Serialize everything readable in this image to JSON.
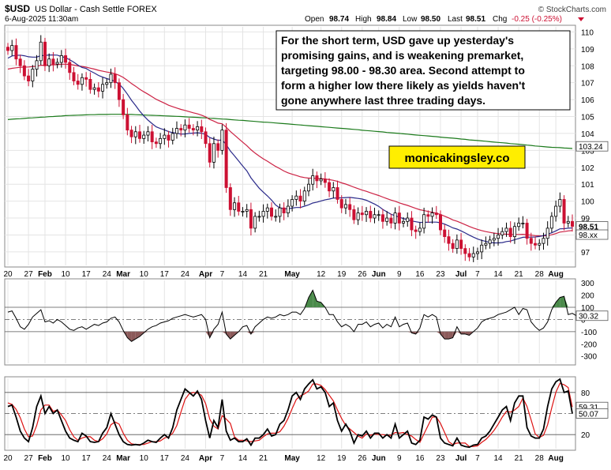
{
  "header": {
    "symbol": "$USD",
    "name": "US Dollar - Cash Settle FOREX",
    "date": "6-Aug-2025 11:30am",
    "brand": "© StockCharts.com",
    "ohlc": [
      {
        "label": "Open",
        "value": "98.74"
      },
      {
        "label": "High",
        "value": "98.84"
      },
      {
        "label": "Low",
        "value": "98.50"
      },
      {
        "label": "Last",
        "value": "98.51"
      },
      {
        "label": "Chg",
        "value": "-0.25 (-0.25%)"
      }
    ]
  },
  "annotation": {
    "lines": [
      "For the short term, USD gave up yesterday's",
      "promising gains, and is weakening premarket,",
      "targeting 98.00 - 98.30 area. Second attempt to",
      "form a higher low there likely as yields haven't",
      "gone anywhere last three trading days."
    ],
    "watermark": "monicakingsley.co"
  },
  "colors": {
    "up_candle": "#000000",
    "down_candle": "#cc1133",
    "ma_short": "#2a2a8a",
    "ma_mid": "#cc2244",
    "ma_long": "#1b7a1b",
    "cci_fill": "#8b5a5a",
    "stoch_k": "#000000",
    "stoch_d": "#dd1111",
    "watermark_bg": "#ffee00"
  },
  "x_axis": {
    "ticks": [
      {
        "label": "20",
        "i": 0
      },
      {
        "label": "27",
        "i": 5
      },
      {
        "label": "Feb",
        "i": 9,
        "bold": true
      },
      {
        "label": "10",
        "i": 14
      },
      {
        "label": "17",
        "i": 19
      },
      {
        "label": "24",
        "i": 24
      },
      {
        "label": "Mar",
        "i": 28,
        "bold": true
      },
      {
        "label": "10",
        "i": 33
      },
      {
        "label": "17",
        "i": 38
      },
      {
        "label": "24",
        "i": 43
      },
      {
        "label": "Apr",
        "i": 48,
        "bold": true
      },
      {
        "label": "7",
        "i": 52
      },
      {
        "label": "14",
        "i": 57
      },
      {
        "label": "21",
        "i": 62
      },
      {
        "label": "May",
        "i": 69,
        "bold": true
      },
      {
        "label": "12",
        "i": 76
      },
      {
        "label": "19",
        "i": 81
      },
      {
        "label": "26",
        "i": 86
      },
      {
        "label": "Jun",
        "i": 90,
        "bold": true
      },
      {
        "label": "9",
        "i": 95
      },
      {
        "label": "16",
        "i": 100
      },
      {
        "label": "23",
        "i": 105
      },
      {
        "label": "Jul",
        "i": 110,
        "bold": true
      },
      {
        "label": "7",
        "i": 114
      },
      {
        "label": "14",
        "i": 119
      },
      {
        "label": "21",
        "i": 124
      },
      {
        "label": "28",
        "i": 129
      },
      {
        "label": "Aug",
        "i": 133,
        "bold": true
      }
    ]
  },
  "chart_data": [
    {
      "type": "candlestick",
      "ylim": [
        96.2,
        110.3
      ],
      "yticks": [
        97,
        98,
        99,
        100,
        101,
        102,
        103,
        104,
        105,
        106,
        107,
        108,
        109,
        110
      ],
      "value_labels": [
        {
          "value": "103.24",
          "y": 103.24
        },
        {
          "value": "98.51",
          "y": 98.51,
          "bold": true
        },
        {
          "value": "98.xx",
          "y": 98.3
        }
      ],
      "closes": [
        108.9,
        109.2,
        108.4,
        108.0,
        107.4,
        107.1,
        107.8,
        108.3,
        109.4,
        108.0,
        108.4,
        108.1,
        108.2,
        108.6,
        108.2,
        107.6,
        107.1,
        106.9,
        107.3,
        107.2,
        106.6,
        106.7,
        106.5,
        106.9,
        107.0,
        107.5,
        107.0,
        106.0,
        105.1,
        104.2,
        103.8,
        104.1,
        103.7,
        103.9,
        104.1,
        103.5,
        103.4,
        103.7,
        103.9,
        103.6,
        104.0,
        104.3,
        104.2,
        104.5,
        104.3,
        104.2,
        104.4,
        104.1,
        103.4,
        102.3,
        103.4,
        103.0,
        104.2,
        100.8,
        99.5,
        99.9,
        99.4,
        99.4,
        99.5,
        98.4,
        99.1,
        99.1,
        99.4,
        99.6,
        99.1,
        99.1,
        99.6,
        99.3,
        99.7,
        100.1,
        100.3,
        100.0,
        100.6,
        101.0,
        101.5,
        101.2,
        101.3,
        101.1,
        100.6,
        100.8,
        100.1,
        99.6,
        99.8,
        99.5,
        98.9,
        99.3,
        99.2,
        99.4,
        99.0,
        99.2,
        99.2,
        98.8,
        99.0,
        98.7,
        99.3,
        98.7,
        98.8,
        99.0,
        98.3,
        98.2,
        98.4,
        99.2,
        99.1,
        99.3,
        99.2,
        98.3,
        97.9,
        97.5,
        97.2,
        97.7,
        97.2,
        96.9,
        96.7,
        96.9,
        97.0,
        97.4,
        97.5,
        97.7,
        97.8,
        98.0,
        98.2,
        98.4,
        97.9,
        98.5,
        98.7,
        98.7,
        97.8,
        97.5,
        97.4,
        97.5,
        97.8,
        98.4,
        99.1,
        99.7,
        100.1,
        98.7,
        98.8,
        98.51
      ],
      "ma_short": {
        "start": 0,
        "values": [
          108.45,
          108.58,
          108.61,
          108.63,
          108.59,
          108.53,
          108.51,
          108.51,
          108.6,
          108.61,
          108.64,
          108.64,
          108.63,
          108.54,
          108.48,
          108.36,
          108.21,
          108.04,
          107.9,
          107.84,
          107.69,
          107.57,
          107.43,
          107.33,
          107.24,
          107.17,
          107.07,
          106.92,
          106.66,
          106.32,
          105.96,
          105.65,
          105.32,
          105.04,
          104.79,
          104.58,
          104.39,
          104.29,
          104.21,
          104.11,
          104.05,
          104.01,
          103.96,
          103.97,
          104.0,
          104.02,
          104.04,
          104.01,
          103.95,
          103.76,
          103.67,
          103.59,
          103.62,
          103.34,
          102.96,
          102.68,
          102.37,
          102.07,
          101.79,
          101.38,
          101.07,
          100.76,
          100.53,
          100.31,
          100.06,
          99.77,
          99.6,
          99.56,
          99.54,
          99.59,
          99.62,
          99.62,
          99.7,
          99.78,
          99.89,
          99.94,
          100.01,
          100.08,
          100.12,
          100.18,
          100.19,
          100.19,
          100.21,
          100.22,
          100.19,
          100.16,
          100.12,
          100.05,
          99.94,
          99.83,
          99.69,
          99.51,
          99.37,
          99.22,
          99.14,
          99.05,
          98.97,
          98.91,
          98.83,
          98.78,
          98.74,
          98.75,
          98.75,
          98.76,
          98.76,
          98.72,
          98.64,
          98.54,
          98.42,
          98.35,
          98.24,
          98.12,
          97.99,
          97.87,
          97.76,
          97.68,
          97.62,
          97.56,
          97.53,
          97.53,
          97.55,
          97.61,
          97.64,
          97.72,
          97.79,
          97.86,
          97.87,
          97.87,
          97.88,
          97.91,
          97.96,
          98.04,
          98.13,
          98.24,
          98.36,
          98.37,
          98.4,
          98.42
        ]
      },
      "ma_mid": {
        "start": 0,
        "values": [
          107.8,
          107.85,
          107.88,
          107.91,
          107.92,
          107.93,
          107.95,
          107.97,
          108.03,
          108.03,
          108.05,
          108.06,
          108.07,
          108.09,
          108.09,
          108.08,
          108.04,
          107.99,
          107.96,
          107.92,
          107.86,
          107.8,
          107.73,
          107.68,
          107.63,
          107.59,
          107.53,
          107.44,
          107.31,
          107.14,
          106.95,
          106.79,
          106.61,
          106.46,
          106.32,
          106.17,
          106.02,
          105.9,
          105.79,
          105.67,
          105.58,
          105.5,
          105.42,
          105.36,
          105.29,
          105.22,
          105.16,
          105.08,
          104.98,
          104.83,
          104.73,
          104.61,
          104.57,
          104.36,
          104.12,
          103.91,
          103.69,
          103.48,
          103.28,
          103.04,
          102.84,
          102.66,
          102.5,
          102.36,
          102.2,
          102.05,
          101.92,
          101.78,
          101.67,
          101.59,
          101.52,
          101.44,
          101.39,
          101.36,
          101.36,
          101.34,
          101.33,
          101.31,
          101.27,
          101.23,
          101.17,
          101.08,
          101.01,
          100.92,
          100.82,
          100.74,
          100.65,
          100.58,
          100.49,
          100.41,
          100.33,
          100.24,
          100.15,
          100.06,
          99.99,
          99.9,
          99.82,
          99.75,
          99.66,
          99.57,
          99.49,
          99.44,
          99.39,
          99.34,
          99.29,
          99.21,
          99.11,
          99.01,
          98.89,
          98.81,
          98.71,
          98.61,
          98.5,
          98.41,
          98.33,
          98.26,
          98.2,
          98.15,
          98.11,
          98.08,
          98.06,
          98.05,
          98.03,
          98.03,
          98.03,
          98.04,
          98.01,
          97.99,
          97.96,
          97.95,
          97.94,
          97.96,
          98.01,
          98.08,
          98.17,
          98.2,
          98.24,
          98.26
        ]
      },
      "ma_long": {
        "start": 0,
        "values": [
          104.82,
          104.84,
          104.86,
          104.87,
          104.89,
          104.91,
          104.92,
          104.94,
          104.96,
          104.97,
          104.99,
          105.0,
          105.02,
          105.03,
          105.05,
          105.06,
          105.07,
          105.08,
          105.09,
          105.1,
          105.11,
          105.11,
          105.12,
          105.12,
          105.12,
          105.13,
          105.13,
          105.13,
          105.13,
          105.12,
          105.12,
          105.11,
          105.1,
          105.09,
          105.08,
          105.07,
          105.06,
          105.05,
          105.04,
          105.03,
          105.02,
          105.01,
          105.0,
          104.98,
          104.97,
          104.96,
          104.95,
          104.93,
          104.92,
          104.9,
          104.89,
          104.87,
          104.85,
          104.84,
          104.82,
          104.8,
          104.78,
          104.77,
          104.75,
          104.73,
          104.71,
          104.69,
          104.67,
          104.66,
          104.64,
          104.62,
          104.6,
          104.58,
          104.56,
          104.54,
          104.52,
          104.5,
          104.48,
          104.46,
          104.44,
          104.42,
          104.4,
          104.38,
          104.36,
          104.34,
          104.32,
          104.3,
          104.28,
          104.26,
          104.24,
          104.22,
          104.19,
          104.17,
          104.15,
          104.13,
          104.11,
          104.09,
          104.06,
          104.04,
          104.02,
          104.0,
          103.98,
          103.96,
          103.93,
          103.91,
          103.89,
          103.87,
          103.85,
          103.83,
          103.81,
          103.78,
          103.76,
          103.74,
          103.72,
          103.7,
          103.67,
          103.65,
          103.62,
          103.6,
          103.58,
          103.56,
          103.54,
          103.51,
          103.49,
          103.47,
          103.45,
          103.43,
          103.4,
          103.38,
          103.36,
          103.34,
          103.31,
          103.29,
          103.26,
          103.24,
          103.22,
          103.2,
          103.18,
          103.17,
          103.16,
          103.14,
          103.13,
          103.11
        ]
      }
    },
    {
      "type": "line",
      "indicator": "cci",
      "ylim": [
        -360,
        320
      ],
      "yticks": [
        300,
        200,
        100,
        0,
        -100,
        -200,
        -300
      ],
      "guides": [
        100,
        0,
        -100
      ],
      "value_labels": [
        {
          "value": "30.32",
          "y": 30.32
        }
      ],
      "values": [
        60,
        70,
        10,
        -60,
        -80,
        -40,
        20,
        50,
        80,
        -20,
        -10,
        -30,
        0,
        -20,
        -50,
        -80,
        -90,
        -70,
        -60,
        -80,
        -60,
        -40,
        -50,
        -30,
        -20,
        10,
        20,
        -20,
        -90,
        -150,
        -180,
        -160,
        -140,
        -110,
        -80,
        -60,
        -50,
        -30,
        -20,
        -10,
        10,
        20,
        30,
        40,
        30,
        20,
        30,
        40,
        0,
        -150,
        -80,
        -40,
        60,
        -120,
        -160,
        -130,
        -100,
        -60,
        -50,
        -120,
        -60,
        -30,
        0,
        20,
        10,
        20,
        40,
        30,
        40,
        60,
        60,
        40,
        90,
        180,
        240,
        150,
        140,
        100,
        40,
        40,
        -20,
        -60,
        -40,
        -60,
        -100,
        -40,
        -40,
        -20,
        -60,
        -40,
        -30,
        -70,
        -40,
        -60,
        20,
        -60,
        -40,
        -30,
        -110,
        -120,
        -70,
        40,
        20,
        40,
        20,
        -120,
        -160,
        -160,
        -150,
        -60,
        -120,
        -120,
        -130,
        -100,
        -70,
        -20,
        0,
        10,
        20,
        40,
        50,
        60,
        80,
        100,
        40,
        90,
        80,
        -20,
        -60,
        -90,
        -70,
        -20,
        80,
        140,
        180,
        190,
        40,
        50,
        30.32
      ]
    },
    {
      "type": "line",
      "indicator": "stochastic",
      "ylim": [
        0,
        100
      ],
      "yticks": [
        80,
        20
      ],
      "guides": [
        80,
        50,
        20
      ],
      "value_labels": [
        {
          "value": "59.31",
          "y": 59.31
        },
        {
          "value": "50.07",
          "y": 50.07
        }
      ],
      "k": [
        60,
        62,
        45,
        25,
        15,
        10,
        30,
        60,
        75,
        50,
        60,
        50,
        55,
        40,
        25,
        15,
        12,
        10,
        22,
        18,
        10,
        9,
        10,
        22,
        30,
        50,
        35,
        20,
        10,
        6,
        5,
        6,
        5,
        8,
        12,
        10,
        9,
        15,
        20,
        15,
        30,
        55,
        70,
        85,
        80,
        75,
        82,
        70,
        40,
        15,
        40,
        30,
        70,
        25,
        12,
        15,
        10,
        10,
        14,
        5,
        15,
        15,
        20,
        28,
        18,
        20,
        35,
        40,
        55,
        75,
        80,
        70,
        85,
        92,
        98,
        85,
        88,
        80,
        60,
        65,
        40,
        25,
        35,
        25,
        8,
        20,
        18,
        25,
        15,
        22,
        22,
        15,
        20,
        15,
        35,
        15,
        20,
        25,
        8,
        6,
        12,
        45,
        42,
        48,
        45,
        15,
        8,
        6,
        4,
        15,
        5,
        3,
        2,
        5,
        6,
        15,
        18,
        25,
        35,
        45,
        55,
        60,
        40,
        65,
        75,
        75,
        30,
        18,
        15,
        15,
        28,
        60,
        85,
        95,
        99,
        80,
        82,
        50.07
      ],
      "d": [
        65,
        63,
        56,
        44,
        28,
        17,
        18,
        33,
        55,
        62,
        62,
        53,
        55,
        48,
        40,
        27,
        17,
        12,
        15,
        17,
        17,
        12,
        10,
        14,
        21,
        34,
        38,
        35,
        22,
        12,
        7,
        6,
        6,
        6,
        8,
        10,
        10,
        11,
        15,
        17,
        22,
        33,
        52,
        70,
        78,
        80,
        79,
        76,
        64,
        42,
        32,
        28,
        47,
        42,
        36,
        17,
        12,
        12,
        11,
        10,
        11,
        12,
        17,
        21,
        22,
        22,
        24,
        32,
        43,
        57,
        70,
        75,
        78,
        82,
        92,
        92,
        90,
        84,
        76,
        68,
        55,
        43,
        33,
        28,
        23,
        18,
        15,
        21,
        19,
        21,
        20,
        20,
        19,
        19,
        23,
        22,
        23,
        20,
        18,
        13,
        9,
        21,
        33,
        45,
        45,
        36,
        23,
        10,
        6,
        8,
        8,
        8,
        3,
        3,
        4,
        9,
        13,
        19,
        26,
        35,
        45,
        53,
        52,
        55,
        60,
        72,
        60,
        41,
        21,
        16,
        19,
        34,
        58,
        80,
        93,
        91,
        87,
        59.31
      ]
    }
  ]
}
